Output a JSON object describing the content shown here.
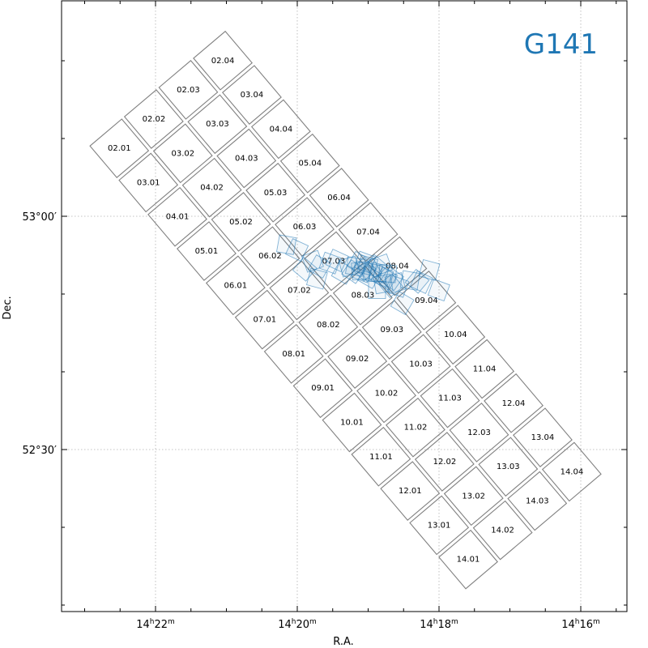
{
  "chart_data": {
    "type": "scatter",
    "title": "G141",
    "title_color": "#1f77b4",
    "xlabel": "R.A.",
    "ylabel": "Dec.",
    "grid": true,
    "x_ticks": [
      {
        "value_min": 1342,
        "h": "14",
        "m": "22"
      },
      {
        "value_min": 1340,
        "h": "14",
        "m": "20"
      },
      {
        "value_min": 1338,
        "h": "14",
        "m": "18"
      },
      {
        "value_min": 1336,
        "h": "14",
        "m": "16"
      }
    ],
    "y_ticks": [
      {
        "value_arcmin": 3180,
        "label": "53°00′"
      },
      {
        "value_arcmin": 3150,
        "label": "52°30′"
      }
    ],
    "x_minor_step_min": 0.5,
    "y_minor_step_arcmin": 10,
    "mosaic": {
      "rows": [
        "01",
        "02",
        "03",
        "04",
        "05",
        "06",
        "07",
        "08",
        "09",
        "10",
        "11",
        "12",
        "13",
        "14"
      ],
      "cols": [
        "01",
        "02",
        "03",
        "04"
      ],
      "labels": [
        "02.01",
        "02.02",
        "02.03",
        "02.04",
        "03.01",
        "03.02",
        "03.03",
        "03.04",
        "04.01",
        "04.02",
        "04.03",
        "04.04",
        "05.01",
        "05.02",
        "05.03",
        "05.04",
        "06.01",
        "06.02",
        "06.03",
        "06.04",
        "07.01",
        "07.02",
        "07.03",
        "07.04",
        "08.01",
        "08.02",
        "08.03",
        "08.04",
        "09.01",
        "09.02",
        "09.03",
        "09.04",
        "10.01",
        "10.02",
        "10.03",
        "10.04",
        "11.01",
        "11.02",
        "11.03",
        "11.04",
        "12.01",
        "12.02",
        "12.03",
        "12.04",
        "13.01",
        "13.02",
        "13.03",
        "13.04",
        "14.01",
        "14.02",
        "14.03",
        "14.04"
      ]
    },
    "pointings_color": "#1f77b4",
    "pointings": [
      [
        4.55,
        1.95,
        20
      ],
      [
        4.0,
        3.1,
        15
      ],
      [
        3.55,
        2.4,
        25
      ],
      [
        3.3,
        2.45,
        40
      ],
      [
        2.9,
        2.5,
        10
      ],
      [
        2.45,
        1.2,
        30
      ],
      [
        2.2,
        2.15,
        20
      ],
      [
        2.05,
        2.35,
        -15
      ],
      [
        1.85,
        2.6,
        35
      ],
      [
        1.6,
        2.9,
        5
      ],
      [
        1.5,
        2.6,
        30
      ],
      [
        1.8,
        2.2,
        50
      ],
      [
        1.35,
        2.3,
        -10
      ],
      [
        1.3,
        2.75,
        25
      ],
      [
        1.1,
        2.95,
        15
      ],
      [
        0.9,
        3.3,
        40
      ],
      [
        1.25,
        3.4,
        -20
      ],
      [
        0.75,
        2.95,
        10
      ],
      [
        0.55,
        2.7,
        30
      ],
      [
        0.6,
        3.1,
        -30
      ],
      [
        0.45,
        3.35,
        15
      ],
      [
        0.3,
        3.55,
        20
      ],
      [
        0.25,
        3.15,
        45
      ],
      [
        0.05,
        3.05,
        -5
      ],
      [
        -0.05,
        3.5,
        30
      ],
      [
        -0.25,
        3.3,
        10
      ],
      [
        -0.35,
        3.0,
        35
      ],
      [
        -0.6,
        3.3,
        -15
      ],
      [
        -1.3,
        3.65,
        25
      ],
      [
        -1.7,
        3.5,
        20
      ],
      [
        -2.3,
        3.3,
        30
      ],
      [
        -2.45,
        2.6,
        15
      ],
      [
        -2.7,
        3.6,
        -20
      ],
      [
        -3.6,
        4.25,
        25
      ],
      [
        -4.2,
        4.55,
        10
      ],
      [
        -3.15,
        3.15,
        40
      ],
      [
        1.0,
        1.95,
        0
      ],
      [
        0.15,
        3.0,
        20
      ],
      [
        -0.95,
        2.95,
        30
      ]
    ]
  }
}
